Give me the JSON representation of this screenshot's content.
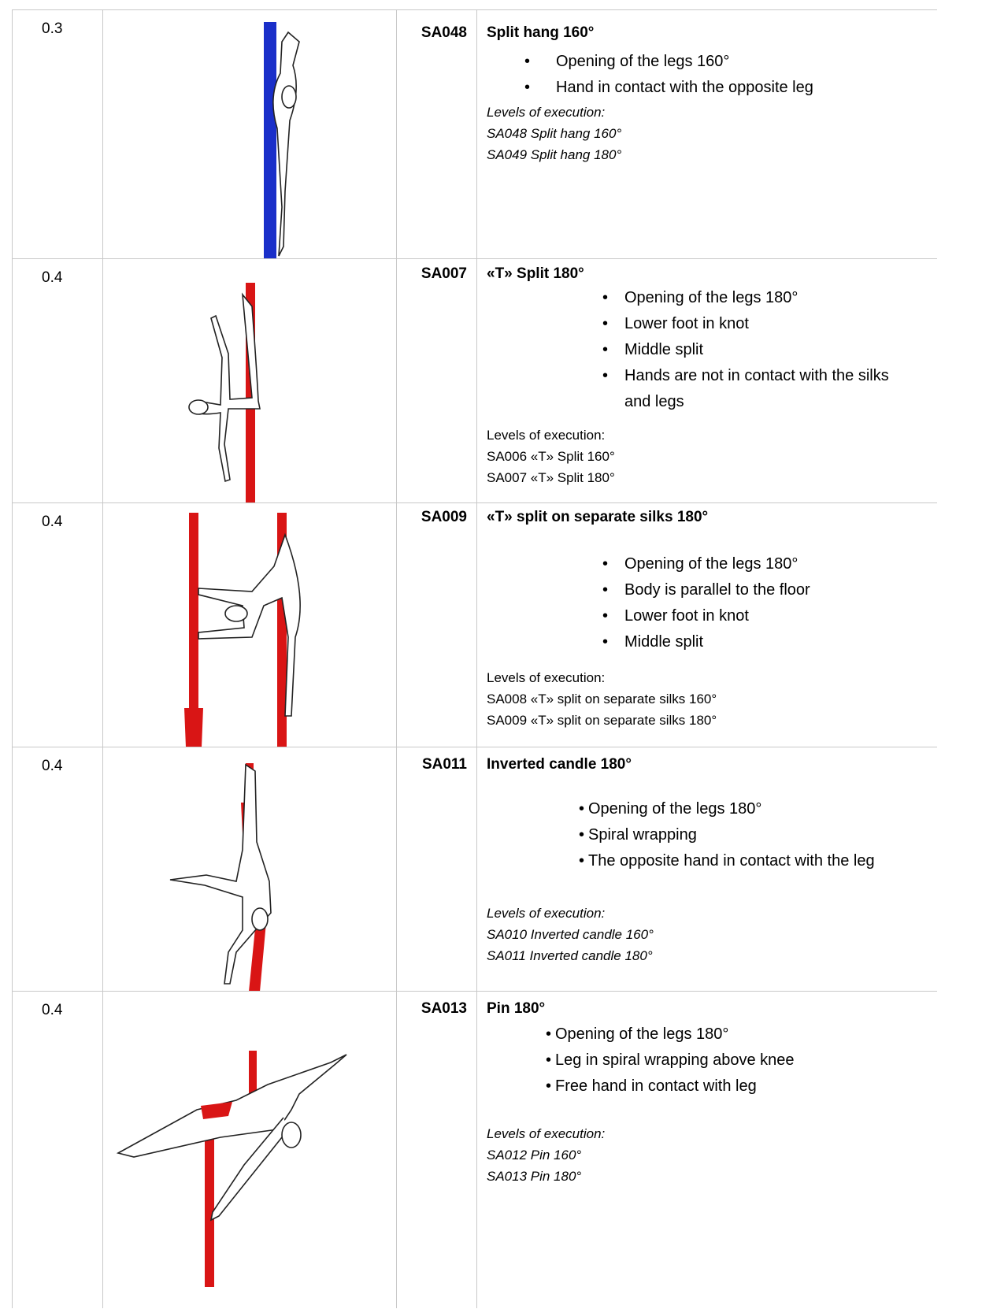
{
  "table": {
    "rows": [
      {
        "value": "0.3",
        "code": "SA048",
        "title": "Split hang 160°",
        "bullets": [
          "Opening of the legs 160°",
          "Hand in contact with the opposite leg"
        ],
        "levels_heading": "Levels of execution:",
        "levels": [
          "SA048 Split hang 160°",
          "SA049 Split hang 180°"
        ]
      },
      {
        "value": "0.4",
        "code": "SA007",
        "title": "«T» Split 180°",
        "bullets": [
          "Opening of the legs 180°",
          "Lower foot in knot",
          "Middle split",
          "Hands are not in contact with the silks and legs"
        ],
        "levels_heading": "Levels of execution:",
        "levels": [
          "SA006 «T» Split 160°",
          "SA007 «T» Split 180°"
        ]
      },
      {
        "value": "0.4",
        "code": "SA009",
        "title": "«T» split on separate silks 180°",
        "bullets": [
          "Opening of the legs 180°",
          "Body is parallel to the floor",
          "Lower foot in knot",
          "Middle split"
        ],
        "levels_heading": "Levels of execution:",
        "levels": [
          "SA008 «T» split on separate silks 160°",
          "SA009 «T» split on separate silks 180°"
        ]
      },
      {
        "value": "0.4",
        "code": "SA011",
        "title": "Inverted candle 180°",
        "bullets": [
          "Opening of the legs 180°",
          "Spiral wrapping",
          "The opposite hand in contact with the leg"
        ],
        "levels_heading": "Levels of execution:",
        "levels": [
          "SA010 Inverted candle 160°",
          "SA011 Inverted candle 180°"
        ]
      },
      {
        "value": "0.4",
        "code": "SA013",
        "title": "Pin 180°",
        "bullets": [
          "Opening of the legs 180°",
          "Leg in spiral wrapping above knee",
          "Free hand in contact with leg"
        ],
        "levels_heading": "Levels of execution:",
        "levels": [
          "SA012 Pin 160°",
          "SA013 Pin 180°"
        ]
      }
    ]
  }
}
